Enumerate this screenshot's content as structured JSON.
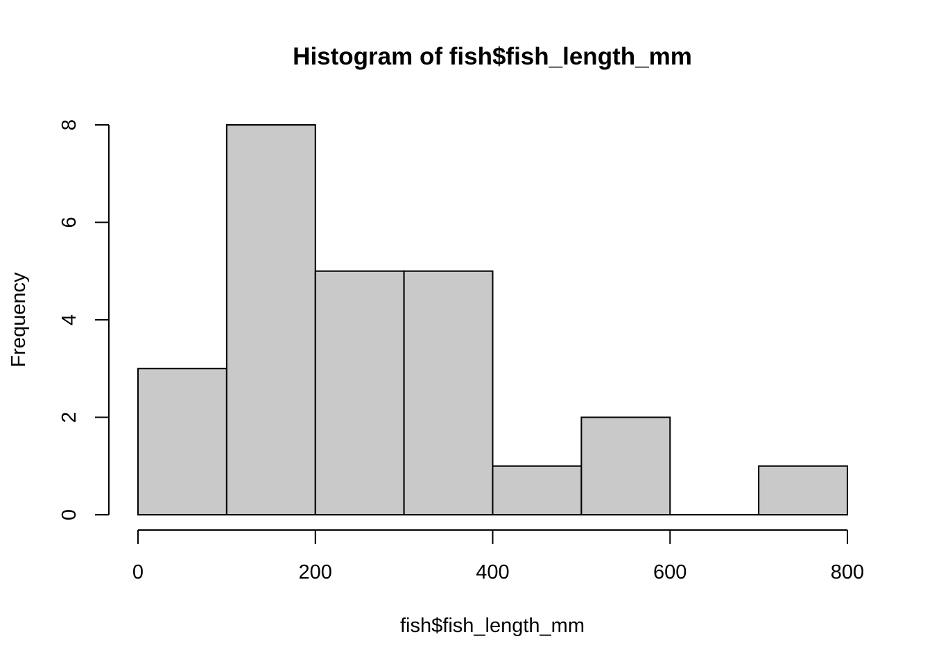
{
  "chart_data": {
    "type": "histogram",
    "title": "Histogram of fish$fish_length_mm",
    "xlabel": "fish$fish_length_mm",
    "ylabel": "Frequency",
    "bins": [
      {
        "start": 0,
        "end": 100,
        "count": 3
      },
      {
        "start": 100,
        "end": 200,
        "count": 8
      },
      {
        "start": 200,
        "end": 300,
        "count": 5
      },
      {
        "start": 300,
        "end": 400,
        "count": 5
      },
      {
        "start": 400,
        "end": 500,
        "count": 1
      },
      {
        "start": 500,
        "end": 600,
        "count": 2
      },
      {
        "start": 600,
        "end": 700,
        "count": 0
      },
      {
        "start": 700,
        "end": 800,
        "count": 1
      }
    ],
    "xticks": [
      "0",
      "200",
      "400",
      "600",
      "800"
    ],
    "yticks": [
      "0",
      "2",
      "4",
      "6",
      "8"
    ],
    "xlim": [
      0,
      800
    ],
    "ylim": [
      0,
      8
    ],
    "bar_color": "#c9c9c9",
    "grid": false,
    "legend": "none"
  }
}
